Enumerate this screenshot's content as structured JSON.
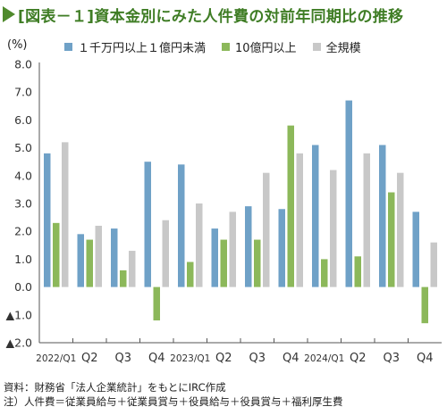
{
  "title": "[図表－１]資本金別にみた人件費の対前年同期比の推移",
  "notes": [
    "資料：財務省「法人企業統計」をもとにIRC作成",
    "注）人件費＝従業員給与＋従業員賞与＋役員給与＋役員賞与＋福利厚生費"
  ],
  "colors": {
    "title": "#3f7d25",
    "axis": "#555555"
  },
  "chart_data": {
    "type": "bar",
    "unit_label": "(%)",
    "categories": [
      "2022/Q1",
      "Q2",
      "Q3",
      "Q4",
      "2023/Q1",
      "Q2",
      "Q3",
      "Q4",
      "2024/Q1",
      "Q2",
      "Q3",
      "Q4"
    ],
    "series": [
      {
        "name": "１千万円以上１億円未満",
        "color": "#6fa1c7",
        "values": [
          4.8,
          1.9,
          2.1,
          4.5,
          4.4,
          2.1,
          2.9,
          2.8,
          5.1,
          6.7,
          5.1,
          2.7
        ]
      },
      {
        "name": "10億円以上",
        "color": "#8cb85a",
        "values": [
          2.3,
          1.7,
          0.6,
          -1.2,
          0.9,
          1.7,
          1.7,
          5.8,
          1.0,
          1.1,
          3.4,
          -1.3
        ]
      },
      {
        "name": "全規模",
        "color": "#c8c8c8",
        "values": [
          5.2,
          2.2,
          1.3,
          2.4,
          3.0,
          2.7,
          4.1,
          4.8,
          4.2,
          4.8,
          4.1,
          1.6
        ]
      }
    ],
    "ylim": [
      -2.0,
      8.0
    ],
    "yticks": [
      -2.0,
      -1.0,
      0.0,
      1.0,
      2.0,
      3.0,
      4.0,
      5.0,
      6.0,
      7.0,
      8.0
    ],
    "ytick_labels": [
      "▲2.0",
      "▲1.0",
      "0.0",
      "1.0",
      "2.0",
      "3.0",
      "4.0",
      "5.0",
      "6.0",
      "7.0",
      "8.0"
    ],
    "grid": false,
    "legend_position": "top"
  }
}
